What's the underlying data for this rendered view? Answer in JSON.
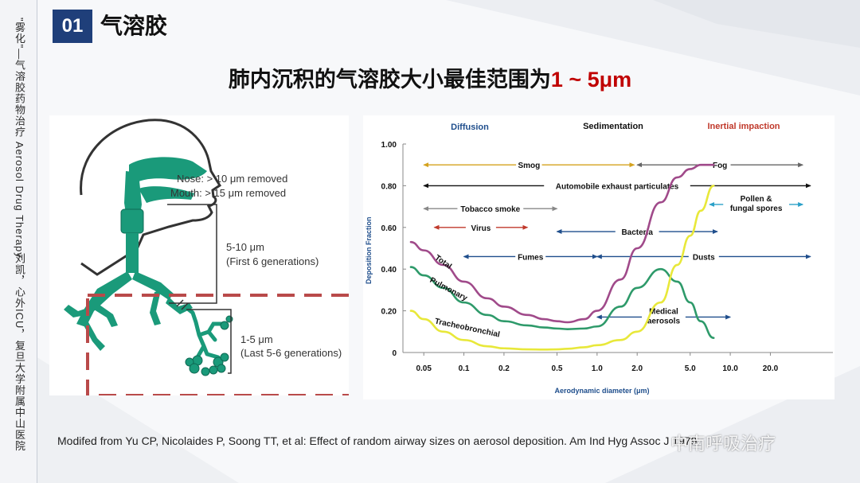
{
  "sidebar": {
    "top_text": "\"雾化\"—气溶胶药物治疗 Aerosol Drug Therapy",
    "bottom_text": "刘凯，心外ICU，复旦大学附属中山医院"
  },
  "header": {
    "badge": "01",
    "title": "气溶胶",
    "headline_prefix": "肺内沉积的气溶胶大小最佳范围为",
    "headline_accent": "1 ~ 5μm"
  },
  "airway_diagram": {
    "labels": {
      "nose": "Nose: > 10 μm removed",
      "mouth": "Mouth: > 15 μm removed",
      "range_a": "5-10 μm",
      "range_a_note": "(First 6 generations)",
      "range_b": "1-5 μm",
      "range_b_note": "(Last 5-6 generations)"
    },
    "colors": {
      "airway": "#1a9a7a",
      "highlight_box": "#b94a4a"
    }
  },
  "chart_data": {
    "type": "line",
    "xscale": "log",
    "xlabel": "Aerodynamic diameter (μm)",
    "ylabel": "Deposition Fraction",
    "xlim": [
      0.04,
      50
    ],
    "ylim": [
      0,
      1.0
    ],
    "x_ticks": [
      "0.05",
      "0.1",
      "0.2",
      "0.5",
      "1.0",
      "2.0",
      "5.0",
      "10.0",
      "20.0"
    ],
    "x_tick_values": [
      0.05,
      0.1,
      0.2,
      0.5,
      1.0,
      2.0,
      5.0,
      10.0,
      20.0
    ],
    "y_ticks": [
      "0",
      "0.20",
      "0.40",
      "0.60",
      "0.80",
      "1.00"
    ],
    "y_tick_values": [
      0,
      0.2,
      0.4,
      0.6,
      0.8,
      1.0
    ],
    "regions": [
      {
        "label": "Diffusion",
        "color": "#1f4e8c"
      },
      {
        "label": "Sedimentation",
        "color": "#111111"
      },
      {
        "label": "Inertial impaction",
        "color": "#c0392b"
      }
    ],
    "series": [
      {
        "name": "Total",
        "color": "#a04a8a",
        "x": [
          0.04,
          0.05,
          0.07,
          0.1,
          0.15,
          0.2,
          0.3,
          0.4,
          0.5,
          0.6,
          0.8,
          1.0,
          1.5,
          2,
          3,
          4,
          5,
          6,
          7.5
        ],
        "y": [
          0.53,
          0.49,
          0.42,
          0.34,
          0.26,
          0.22,
          0.18,
          0.16,
          0.15,
          0.145,
          0.16,
          0.2,
          0.35,
          0.5,
          0.72,
          0.84,
          0.88,
          0.9,
          0.9
        ]
      },
      {
        "name": "Pulmonary",
        "color": "#2e9a6a",
        "x": [
          0.04,
          0.05,
          0.07,
          0.1,
          0.15,
          0.2,
          0.3,
          0.4,
          0.5,
          0.6,
          0.8,
          1.0,
          1.5,
          2,
          3,
          4,
          5,
          6,
          7.5
        ],
        "y": [
          0.41,
          0.37,
          0.31,
          0.24,
          0.18,
          0.15,
          0.13,
          0.12,
          0.115,
          0.112,
          0.115,
          0.125,
          0.22,
          0.31,
          0.4,
          0.34,
          0.24,
          0.15,
          0.07
        ]
      },
      {
        "name": "Tracheobronchial",
        "color": "#e8e83a",
        "x": [
          0.04,
          0.05,
          0.07,
          0.1,
          0.15,
          0.2,
          0.3,
          0.4,
          0.5,
          0.6,
          0.8,
          1.0,
          1.5,
          2,
          3,
          4,
          5,
          6,
          7.5
        ],
        "y": [
          0.2,
          0.16,
          0.1,
          0.06,
          0.03,
          0.02,
          0.015,
          0.014,
          0.015,
          0.018,
          0.025,
          0.035,
          0.06,
          0.1,
          0.24,
          0.42,
          0.56,
          0.68,
          0.8
        ]
      }
    ],
    "ranges": [
      {
        "label": "Smog",
        "from": 0.05,
        "to": 1.9,
        "y": 0.9,
        "color": "#d4a21e"
      },
      {
        "label": "Fog",
        "from": 2.0,
        "to": 35,
        "y": 0.9,
        "color": "#666666"
      },
      {
        "label": "Automobile exhaust particulates",
        "from": 0.05,
        "to": 40,
        "y": 0.8,
        "color": "#111111"
      },
      {
        "label": "Tobacco smoke",
        "from": 0.05,
        "to": 0.5,
        "y": 0.69,
        "color": "#888888"
      },
      {
        "label": "Pollen & fungal spores",
        "from": 7,
        "to": 35,
        "y": 0.71,
        "color": "#2aa0c8"
      },
      {
        "label": "Virus",
        "from": 0.06,
        "to": 0.3,
        "y": 0.6,
        "color": "#c0392b"
      },
      {
        "label": "Bacteria",
        "from": 0.5,
        "to": 8,
        "y": 0.58,
        "color": "#1f4e8c"
      },
      {
        "label": "Fumes",
        "from": 0.1,
        "to": 1.0,
        "y": 0.46,
        "color": "#1f4e8c"
      },
      {
        "label": "Dusts",
        "from": 1.0,
        "to": 40,
        "y": 0.46,
        "color": "#1f4e8c"
      },
      {
        "label": "Medical aerosols",
        "from": 1.0,
        "to": 10,
        "y": 0.17,
        "color": "#1f4e8c"
      }
    ]
  },
  "citation": "Modifed from Yu CP, Nicolaides P, Soong TT, et al: Effect of random airway sizes on aerosol deposition. Am Ind Hyg Assoc J 1979.",
  "watermark": "中南呼吸治疗"
}
